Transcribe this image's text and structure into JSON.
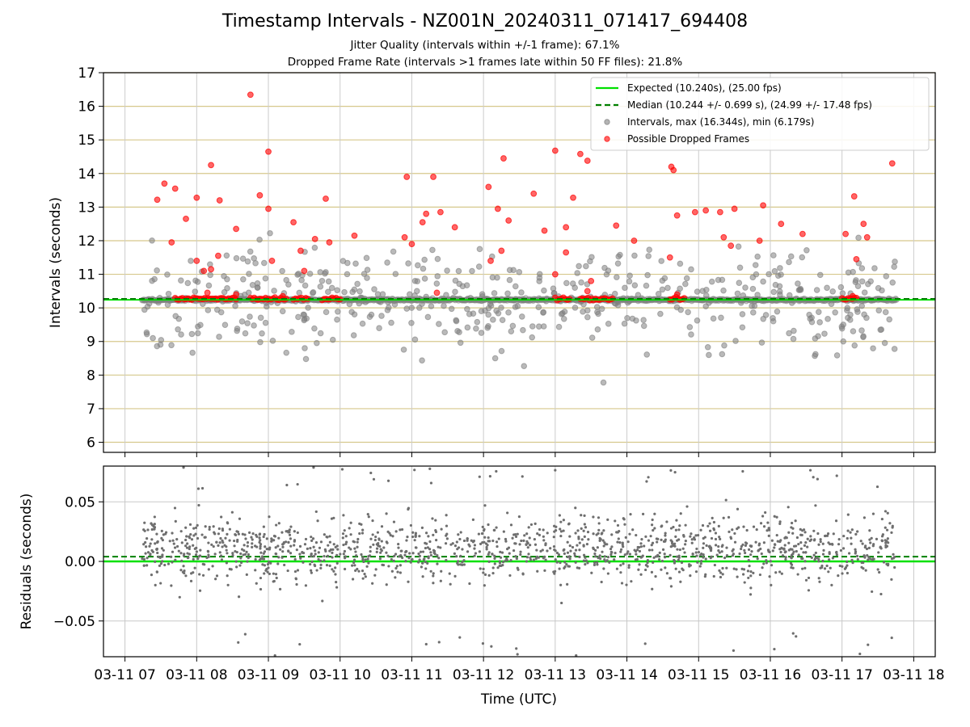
{
  "header": {
    "title": "Timestamp Intervals - NZ001N_20240311_071417_694408",
    "subtitle_1": "Jitter Quality (intervals within +/-1 frame): 67.1%",
    "subtitle_2": "Dropped Frame Rate (intervals >1 frames late within 50 FF files): 21.8%"
  },
  "chart_data": [
    {
      "type": "scatter",
      "panel": "top",
      "ylabel": "Intervals (seconds)",
      "xlabel": "",
      "ylim": [
        5.7,
        17
      ],
      "yticks": [
        6,
        7,
        8,
        9,
        10,
        11,
        12,
        13,
        14,
        15,
        16,
        17
      ],
      "xlim": [
        6.7,
        18.3
      ],
      "grid": true,
      "legend_position": "top-right",
      "legend": [
        {
          "label": "Expected (10.240s), (25.00 fps)",
          "style": "solid-line",
          "color": "#00e000"
        },
        {
          "label": "Median (10.244 +/- 0.699 s), (24.99 +/- 17.48 fps)",
          "style": "dashed-line",
          "color": "#008000"
        },
        {
          "label": "Intervals, max (16.344s), min (6.179s)",
          "style": "marker",
          "color": "#808080"
        },
        {
          "label": "Possible Dropped Frames",
          "style": "marker",
          "color": "#ff0000"
        }
      ],
      "reference_lines": {
        "expected": 10.24,
        "median": 10.244
      },
      "colors": {
        "intervals": "#808080",
        "dropped": "#ff0000",
        "expected": "#00e000",
        "median": "#008000",
        "grid": "#d6c88c"
      },
      "time_range_hours": [
        7.24,
        17.76
      ],
      "dropped_points": [
        {
          "x": 8.75,
          "y": 16.344
        },
        {
          "x": 9.0,
          "y": 14.65
        },
        {
          "x": 8.2,
          "y": 14.25
        },
        {
          "x": 12.28,
          "y": 14.45
        },
        {
          "x": 13.0,
          "y": 14.68
        },
        {
          "x": 13.35,
          "y": 14.58
        },
        {
          "x": 13.45,
          "y": 14.38
        },
        {
          "x": 14.62,
          "y": 14.2
        },
        {
          "x": 14.65,
          "y": 14.1
        },
        {
          "x": 17.7,
          "y": 14.3
        },
        {
          "x": 10.93,
          "y": 13.9
        },
        {
          "x": 11.3,
          "y": 13.9
        },
        {
          "x": 7.55,
          "y": 13.7
        },
        {
          "x": 7.7,
          "y": 13.55
        },
        {
          "x": 7.45,
          "y": 13.22
        },
        {
          "x": 8.0,
          "y": 13.28
        },
        {
          "x": 8.32,
          "y": 13.2
        },
        {
          "x": 8.88,
          "y": 13.35
        },
        {
          "x": 9.8,
          "y": 13.25
        },
        {
          "x": 12.07,
          "y": 13.6
        },
        {
          "x": 12.7,
          "y": 13.4
        },
        {
          "x": 13.25,
          "y": 13.28
        },
        {
          "x": 17.17,
          "y": 13.32
        },
        {
          "x": 14.95,
          "y": 12.85
        },
        {
          "x": 15.1,
          "y": 12.9
        },
        {
          "x": 15.5,
          "y": 12.95
        },
        {
          "x": 15.9,
          "y": 13.05
        },
        {
          "x": 11.15,
          "y": 12.55
        },
        {
          "x": 11.2,
          "y": 12.8
        },
        {
          "x": 11.4,
          "y": 12.85
        },
        {
          "x": 12.2,
          "y": 12.95
        },
        {
          "x": 12.35,
          "y": 12.6
        },
        {
          "x": 13.85,
          "y": 12.45
        },
        {
          "x": 14.7,
          "y": 12.75
        },
        {
          "x": 15.3,
          "y": 12.85
        },
        {
          "x": 16.15,
          "y": 12.5
        },
        {
          "x": 17.3,
          "y": 12.5
        },
        {
          "x": 7.85,
          "y": 12.65
        },
        {
          "x": 8.55,
          "y": 12.35
        },
        {
          "x": 9.0,
          "y": 12.95
        },
        {
          "x": 9.35,
          "y": 12.55
        },
        {
          "x": 9.65,
          "y": 12.05
        },
        {
          "x": 10.2,
          "y": 12.15
        },
        {
          "x": 10.9,
          "y": 12.1
        },
        {
          "x": 11.6,
          "y": 12.4
        },
        {
          "x": 12.85,
          "y": 12.3
        },
        {
          "x": 13.15,
          "y": 12.4
        },
        {
          "x": 14.1,
          "y": 12.0
        },
        {
          "x": 15.35,
          "y": 12.1
        },
        {
          "x": 15.85,
          "y": 12.0
        },
        {
          "x": 16.45,
          "y": 12.2
        },
        {
          "x": 17.05,
          "y": 12.2
        },
        {
          "x": 17.35,
          "y": 12.1
        },
        {
          "x": 7.65,
          "y": 11.95
        },
        {
          "x": 8.0,
          "y": 11.4
        },
        {
          "x": 8.3,
          "y": 11.55
        },
        {
          "x": 9.05,
          "y": 11.4
        },
        {
          "x": 9.45,
          "y": 11.7
        },
        {
          "x": 9.85,
          "y": 11.95
        },
        {
          "x": 11.0,
          "y": 11.9
        },
        {
          "x": 12.25,
          "y": 11.7
        },
        {
          "x": 13.15,
          "y": 11.65
        },
        {
          "x": 14.6,
          "y": 11.5
        },
        {
          "x": 15.45,
          "y": 11.85
        },
        {
          "x": 17.2,
          "y": 11.45
        },
        {
          "x": 8.1,
          "y": 11.1
        },
        {
          "x": 8.2,
          "y": 11.15
        },
        {
          "x": 9.5,
          "y": 11.1
        },
        {
          "x": 13.0,
          "y": 11.0
        },
        {
          "x": 12.1,
          "y": 11.4
        },
        {
          "x": 13.5,
          "y": 10.8
        },
        {
          "x": 8.15,
          "y": 10.45
        },
        {
          "x": 8.55,
          "y": 10.4
        },
        {
          "x": 9.2,
          "y": 10.35
        },
        {
          "x": 11.35,
          "y": 10.45
        },
        {
          "x": 13.45,
          "y": 10.5
        },
        {
          "x": 14.7,
          "y": 10.4
        },
        {
          "x": 17.15,
          "y": 10.35
        }
      ],
      "dropped_clusters": [
        {
          "x_start": 7.7,
          "x_end": 8.55,
          "y": 10.27
        },
        {
          "x_start": 8.75,
          "x_end": 9.25,
          "y": 10.27
        },
        {
          "x_start": 9.35,
          "x_end": 9.55,
          "y": 10.27
        },
        {
          "x_start": 9.75,
          "x_end": 10.0,
          "y": 10.27
        },
        {
          "x_start": 13.0,
          "x_end": 13.2,
          "y": 10.27
        },
        {
          "x_start": 13.35,
          "x_end": 13.8,
          "y": 10.27
        },
        {
          "x_start": 14.6,
          "x_end": 14.8,
          "y": 10.27
        },
        {
          "x_start": 17.0,
          "x_end": 17.2,
          "y": 10.27
        }
      ]
    },
    {
      "type": "scatter",
      "panel": "bottom",
      "ylabel": "Residuals (seconds)",
      "xlabel": "Time (UTC)",
      "ylim": [
        -0.08,
        0.08
      ],
      "yticks": [
        -0.05,
        0.0,
        0.05
      ],
      "ytick_labels": [
        "−0.05",
        "0.00",
        "0.05"
      ],
      "xlim": [
        6.7,
        18.3
      ],
      "xticks": [
        7,
        8,
        9,
        10,
        11,
        12,
        13,
        14,
        15,
        16,
        17,
        18
      ],
      "xtick_labels": [
        "03-11 07",
        "03-11 08",
        "03-11 09",
        "03-11 10",
        "03-11 11",
        "03-11 12",
        "03-11 13",
        "03-11 14",
        "03-11 15",
        "03-11 16",
        "03-11 17",
        "03-11 18"
      ],
      "grid": true,
      "reference_lines": {
        "expected": 0.0,
        "median": 0.004
      },
      "colors": {
        "points": "#6e6e6e",
        "expected": "#00e000",
        "median": "#008000",
        "grid": "#c8c8c8"
      },
      "typical_range": [
        -0.03,
        0.05
      ]
    }
  ]
}
